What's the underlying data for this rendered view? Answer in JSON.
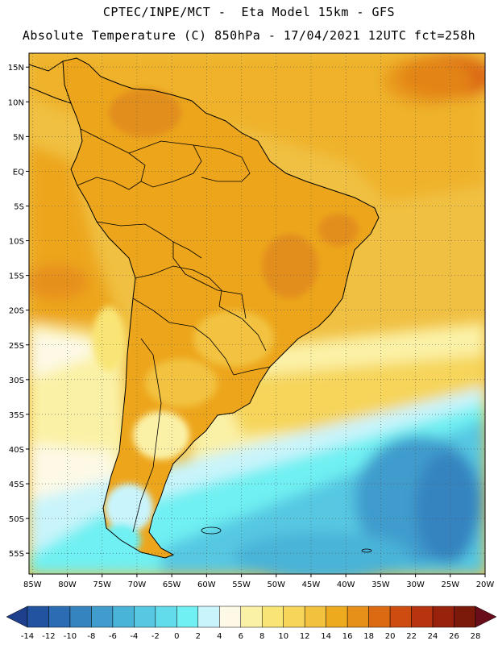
{
  "header": {
    "line1": "CPTEC/INPE/MCT -  Eta Model 15km - GFS",
    "line2": "Absolute Temperature (C) 850hPa - 17/04/2021 12UTC fct=258h"
  },
  "axes": {
    "lat_labels": [
      "15N",
      "10N",
      "5N",
      "EQ",
      "5S",
      "10S",
      "15S",
      "20S",
      "25S",
      "30S",
      "35S",
      "40S",
      "45S",
      "50S",
      "55S"
    ],
    "lon_labels": [
      "85W",
      "80W",
      "75W",
      "70W",
      "65W",
      "60W",
      "55W",
      "50W",
      "45W",
      "40W",
      "35W",
      "30W",
      "25W",
      "20W"
    ],
    "lat_range": [
      17,
      -58
    ],
    "lon_range": [
      -85.5,
      -20
    ],
    "grid": "dotted"
  },
  "colorbar": {
    "labels": [
      "-14",
      "-12",
      "-10",
      "-8",
      "-6",
      "-4",
      "-2",
      "0",
      "2",
      "4",
      "6",
      "8",
      "10",
      "12",
      "14",
      "16",
      "18",
      "20",
      "22",
      "24",
      "26",
      "28"
    ],
    "colors": [
      "#1d3f8c",
      "#2253a0",
      "#2b6cb2",
      "#3584c0",
      "#3f9ccd",
      "#4ab3d8",
      "#56c8e2",
      "#62dcea",
      "#70f0f2",
      "#c9f4fb",
      "#fdf9e6",
      "#fbf1a6",
      "#f9e575",
      "#f6d55a",
      "#f2c23f",
      "#edaa1f",
      "#e6901a",
      "#dc6a12",
      "#cf4c10",
      "#b8340e",
      "#98220c",
      "#7b1a0b",
      "#6a0d1a"
    ]
  },
  "fields": {
    "land_color": "#eda61c",
    "ocean_color": "#f0c043",
    "warm_spot_color": "#e28e1c",
    "cold_ocean_color": "#62dcea"
  }
}
